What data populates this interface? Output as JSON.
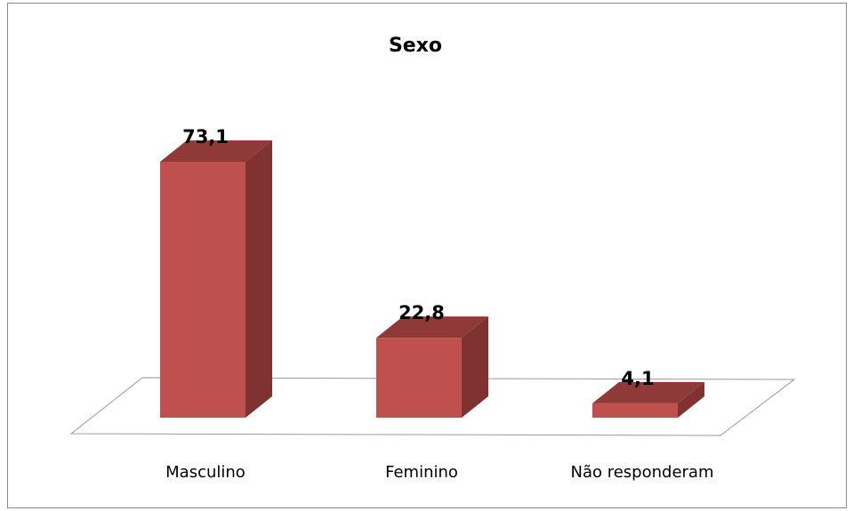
{
  "chart_data": {
    "type": "bar3d",
    "title": "Sexo",
    "categories": [
      "Masculino",
      "Feminino",
      "Não responderam"
    ],
    "values": [
      73.1,
      22.8,
      4.1
    ],
    "value_labels": [
      "73,1",
      "22,8",
      "4,1"
    ],
    "color": "#c0504d"
  }
}
